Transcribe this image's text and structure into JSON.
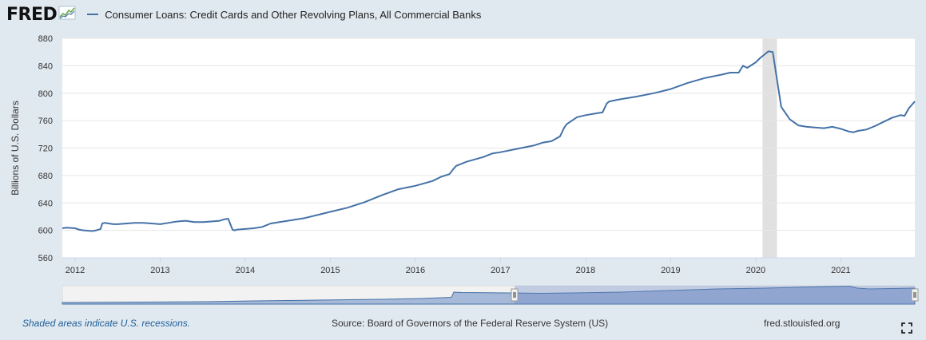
{
  "header": {
    "logo_text": "FRED",
    "logo_icon": "sparkline-logo-icon",
    "series_label": "Consumer Loans: Credit Cards and Other Revolving Plans, All Commercial Banks",
    "series_color": "#4572a7"
  },
  "footer": {
    "recession_note": "Shaded areas indicate U.S. recessions.",
    "source": "Source: Board of Governors of the Federal Reserve System (US)",
    "site": "fred.stlouisfed.org",
    "fullscreen_icon": "fullscreen-icon"
  },
  "chart_data": {
    "type": "line",
    "ylabel": "Billions of U.S. Dollars",
    "xlim": [
      2011.85,
      2021.87
    ],
    "ylim": [
      560,
      880
    ],
    "y_ticks": [
      560,
      600,
      640,
      680,
      720,
      760,
      800,
      840,
      880
    ],
    "x_ticks": [
      2012,
      2013,
      2014,
      2015,
      2016,
      2017,
      2018,
      2019,
      2020,
      2021
    ],
    "grid": "horizontal",
    "recessions": [
      [
        2020.08,
        2020.25
      ]
    ],
    "line_color": "#4572a7",
    "series": [
      {
        "name": "Consumer Loans: Credit Cards and Other Revolving Plans, All Commercial Banks",
        "x": [
          2011.85,
          2011.9,
          2012.0,
          2012.05,
          2012.1,
          2012.2,
          2012.25,
          2012.3,
          2012.32,
          2012.35,
          2012.45,
          2012.5,
          2012.7,
          2012.8,
          2012.9,
          2013.0,
          2013.1,
          2013.15,
          2013.2,
          2013.3,
          2013.4,
          2013.5,
          2013.6,
          2013.7,
          2013.75,
          2013.8,
          2013.85,
          2013.88,
          2013.9,
          2014.0,
          2014.1,
          2014.2,
          2014.3,
          2014.5,
          2014.7,
          2014.9,
          2015.0,
          2015.2,
          2015.4,
          2015.6,
          2015.8,
          2016.0,
          2016.2,
          2016.3,
          2016.4,
          2016.45,
          2016.48,
          2016.6,
          2016.8,
          2016.9,
          2017.0,
          2017.2,
          2017.4,
          2017.5,
          2017.6,
          2017.7,
          2017.75,
          2017.78,
          2017.9,
          2018.0,
          2018.1,
          2018.2,
          2018.25,
          2018.28,
          2018.4,
          2018.6,
          2018.8,
          2019.0,
          2019.2,
          2019.4,
          2019.6,
          2019.7,
          2019.8,
          2019.85,
          2019.9,
          2020.0,
          2020.05,
          2020.1,
          2020.15,
          2020.2,
          2020.25,
          2020.3,
          2020.4,
          2020.5,
          2020.6,
          2020.8,
          2020.9,
          2021.0,
          2021.1,
          2021.15,
          2021.2,
          2021.3,
          2021.4,
          2021.5,
          2021.6,
          2021.7,
          2021.75,
          2021.8,
          2021.87
        ],
        "y": [
          603,
          604,
          603,
          601,
          600,
          599,
          600,
          602,
          610,
          611,
          609,
          609,
          611,
          611,
          610,
          609,
          611,
          612,
          613,
          614,
          612,
          612,
          613,
          614,
          616,
          617,
          601,
          600,
          601,
          602,
          603,
          605,
          610,
          614,
          618,
          624,
          627,
          633,
          641,
          651,
          660,
          665,
          672,
          678,
          682,
          690,
          694,
          700,
          707,
          712,
          714,
          719,
          724,
          728,
          730,
          737,
          750,
          755,
          765,
          768,
          770,
          772,
          785,
          788,
          791,
          795,
          800,
          806,
          815,
          822,
          827,
          830,
          830,
          840,
          837,
          845,
          851,
          856,
          861,
          860,
          820,
          780,
          762,
          753,
          751,
          749,
          751,
          748,
          744,
          743,
          745,
          747,
          752,
          758,
          764,
          768,
          767,
          778,
          788
        ]
      }
    ]
  }
}
